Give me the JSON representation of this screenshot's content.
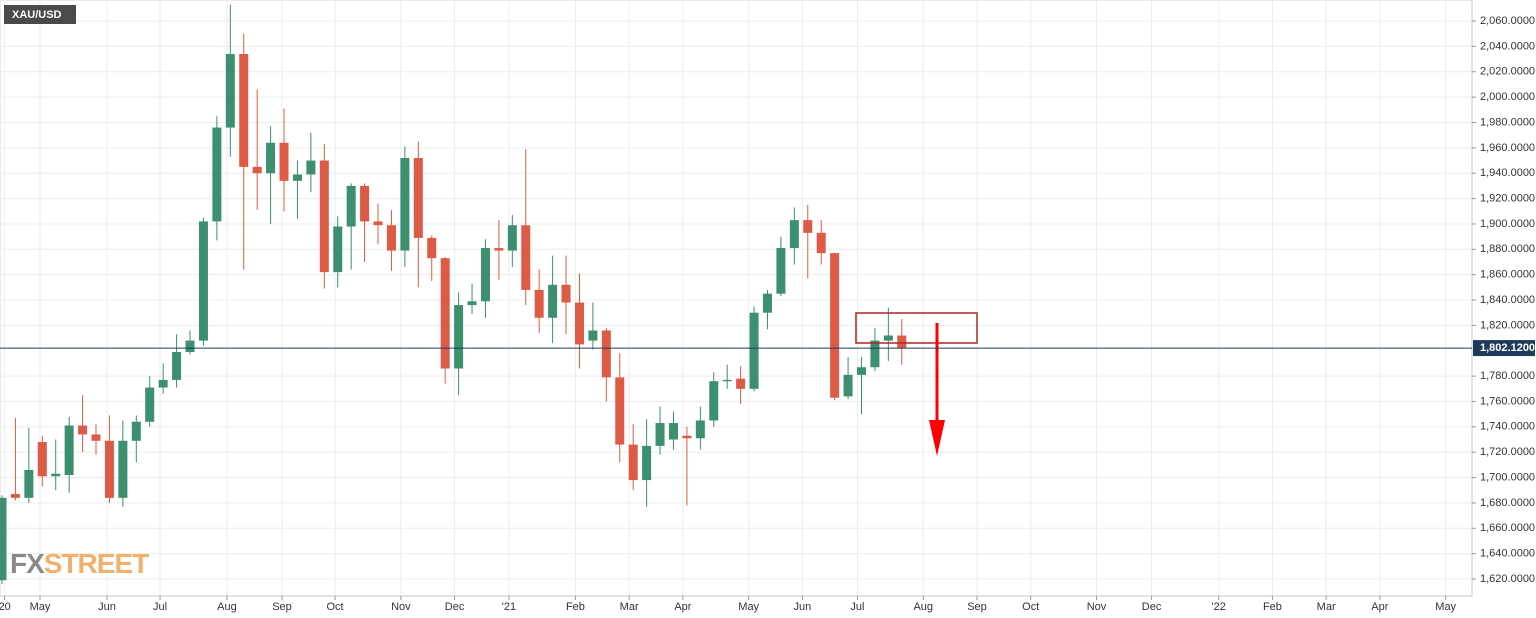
{
  "chart_data": {
    "type": "candlestick",
    "title": "XAU/USD",
    "watermark": [
      "FX",
      "STREET"
    ],
    "up_color": "#3c8f6f",
    "down_color": "#dd5a47",
    "grid": true,
    "x": [
      0,
      1,
      2,
      3,
      4,
      5,
      6,
      7,
      8,
      9,
      10,
      11,
      12,
      13,
      14,
      15,
      16,
      17,
      18,
      19,
      20,
      21,
      22,
      23,
      24,
      25,
      26,
      27,
      28,
      29,
      30,
      31,
      32,
      33,
      34,
      35,
      36,
      37,
      38,
      39,
      40,
      41,
      42,
      43,
      44,
      45,
      46,
      47,
      48,
      49,
      50,
      51,
      52,
      53,
      54,
      55,
      56,
      57,
      58,
      59,
      60,
      61,
      62,
      63,
      64,
      65,
      66,
      67
    ],
    "open": [
      1619,
      1687,
      1684,
      1728,
      1701,
      1702,
      1741,
      1734,
      1729,
      1684,
      1729,
      1744,
      1771,
      1777,
      1799,
      1808,
      1902,
      1976,
      2034,
      1945,
      1940,
      1964,
      1934,
      1939,
      1950,
      1862,
      1898,
      1930,
      1902,
      1899,
      1879,
      1952,
      1889,
      1873,
      1786,
      1836,
      1839,
      1881,
      1879,
      1899,
      1848,
      1826,
      1852,
      1838,
      1808,
      1816,
      1779,
      1726,
      1698,
      1725,
      1730,
      1733,
      1731,
      1745,
      1776,
      1778,
      1770,
      1830,
      1845,
      1881,
      1903,
      1893,
      1877,
      1764,
      1781,
      1787,
      1808,
      1812
    ],
    "high": [
      1686,
      1747,
      1739,
      1733,
      1730,
      1748,
      1765,
      1742,
      1749,
      1745,
      1749,
      1780,
      1790,
      1813,
      1816,
      1905,
      1985,
      2073,
      2050,
      2006,
      1977,
      1991,
      1950,
      1972,
      1963,
      1906,
      1932,
      1932,
      1916,
      1911,
      1961,
      1965,
      1891,
      1874,
      1846,
      1853,
      1888,
      1903,
      1907,
      1959,
      1864,
      1875,
      1875,
      1861,
      1838,
      1818,
      1798,
      1742,
      1746,
      1756,
      1752,
      1740,
      1756,
      1783,
      1789,
      1788,
      1835,
      1848,
      1890,
      1913,
      1915,
      1903,
      1877,
      1795,
      1795,
      1818,
      1834,
      1825
    ],
    "low": [
      1616,
      1682,
      1680,
      1693,
      1690,
      1688,
      1720,
      1718,
      1680,
      1677,
      1712,
      1740,
      1766,
      1771,
      1797,
      1804,
      1887,
      1953,
      1864,
      1911,
      1900,
      1910,
      1904,
      1925,
      1849,
      1850,
      1864,
      1870,
      1884,
      1863,
      1866,
      1850,
      1855,
      1774,
      1765,
      1829,
      1826,
      1856,
      1866,
      1836,
      1814,
      1806,
      1813,
      1786,
      1801,
      1760,
      1712,
      1690,
      1677,
      1718,
      1722,
      1678,
      1722,
      1740,
      1770,
      1758,
      1768,
      1817,
      1843,
      1868,
      1857,
      1868,
      1761,
      1762,
      1750,
      1784,
      1792,
      1789
    ],
    "close": [
      1684,
      1684,
      1706,
      1701,
      1703,
      1741,
      1734,
      1729,
      1684,
      1729,
      1744,
      1771,
      1777,
      1799,
      1808,
      1902,
      1976,
      2034,
      1945,
      1940,
      1964,
      1934,
      1939,
      1950,
      1862,
      1898,
      1930,
      1902,
      1899,
      1879,
      1952,
      1889,
      1873,
      1786,
      1836,
      1839,
      1881,
      1879,
      1899,
      1848,
      1826,
      1852,
      1838,
      1805,
      1816,
      1779,
      1726,
      1698,
      1725,
      1743,
      1743,
      1731,
      1745,
      1776,
      1777,
      1770,
      1830,
      1845,
      1881,
      1903,
      1893,
      1877,
      1763,
      1781,
      1787,
      1808,
      1812,
      1802.12
    ],
    "last_price": {
      "value": 1802.12,
      "label": "1,802.1200"
    },
    "xlim": [
      -0.149,
      109.46
    ],
    "xticks": [
      {
        "value": 0.2,
        "label": "20"
      },
      {
        "value": 2.83,
        "label": "May"
      },
      {
        "value": 7.82,
        "label": "Jun"
      },
      {
        "value": 11.77,
        "label": "Jul"
      },
      {
        "value": 16.75,
        "label": "Aug"
      },
      {
        "value": 20.85,
        "label": "Sep"
      },
      {
        "value": 24.8,
        "label": "Oct"
      },
      {
        "value": 29.7,
        "label": "Nov"
      },
      {
        "value": 33.7,
        "label": "Dec"
      },
      {
        "value": 37.75,
        "label": "'21"
      },
      {
        "value": 42.7,
        "label": "Feb"
      },
      {
        "value": 46.7,
        "label": "Mar"
      },
      {
        "value": 50.7,
        "label": "Apr"
      },
      {
        "value": 55.6,
        "label": "May"
      },
      {
        "value": 59.6,
        "label": "Jun"
      },
      {
        "value": 63.7,
        "label": "Jul"
      },
      {
        "value": 68.6,
        "label": "Aug"
      },
      {
        "value": 72.6,
        "label": "Sep"
      },
      {
        "value": 76.6,
        "label": "Oct"
      },
      {
        "value": 81.5,
        "label": "Nov"
      },
      {
        "value": 85.6,
        "label": "Dec"
      },
      {
        "value": 90.6,
        "label": "'22"
      },
      {
        "value": 94.6,
        "label": "Feb"
      },
      {
        "value": 98.6,
        "label": "Mar"
      },
      {
        "value": 102.6,
        "label": "Apr"
      },
      {
        "value": 107.5,
        "label": "May"
      }
    ],
    "ylim": [
      1606.6,
      2076.6
    ],
    "yticks": [
      {
        "value": 2060,
        "label": "2,060.0000"
      },
      {
        "value": 2040,
        "label": "2,040.0000"
      },
      {
        "value": 2020,
        "label": "2,020.0000"
      },
      {
        "value": 2000,
        "label": "2,000.0000"
      },
      {
        "value": 1980,
        "label": "1,980.0000"
      },
      {
        "value": 1960,
        "label": "1,960.0000"
      },
      {
        "value": 1940,
        "label": "1,940.0000"
      },
      {
        "value": 1920,
        "label": "1,920.0000"
      },
      {
        "value": 1900,
        "label": "1,900.0000"
      },
      {
        "value": 1880,
        "label": "1,880.0000"
      },
      {
        "value": 1860,
        "label": "1,860.0000"
      },
      {
        "value": 1840,
        "label": "1,840.0000"
      },
      {
        "value": 1820,
        "label": "1,820.0000"
      },
      {
        "value": 1780,
        "label": "1,780.0000"
      },
      {
        "value": 1760,
        "label": "1,760.0000"
      },
      {
        "value": 1740,
        "label": "1,740.0000"
      },
      {
        "value": 1720,
        "label": "1,720.0000"
      },
      {
        "value": 1700,
        "label": "1,700.0000"
      },
      {
        "value": 1680,
        "label": "1,680.0000"
      },
      {
        "value": 1660,
        "label": "1,660.0000"
      },
      {
        "value": 1640,
        "label": "1,640.0000"
      },
      {
        "value": 1620,
        "label": "1,620.0000"
      }
    ]
  }
}
